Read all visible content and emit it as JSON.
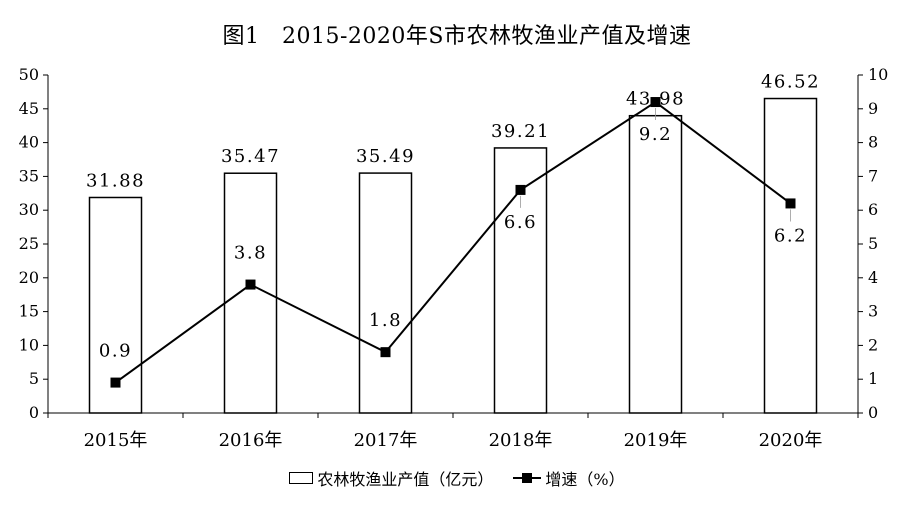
{
  "chart_data": {
    "type": "bar+line",
    "title": "图1　2015-2020年S市农林牧渔业产值及增速",
    "categories": [
      "2015年",
      "2016年",
      "2017年",
      "2018年",
      "2019年",
      "2020年"
    ],
    "series": [
      {
        "name": "农林牧渔业产值（亿元）",
        "type": "bar",
        "axis": "left",
        "values": [
          31.88,
          35.47,
          35.49,
          39.21,
          43.98,
          46.52
        ],
        "labels": [
          "31.88",
          "35.47",
          "35.49",
          "39.21",
          "43.98",
          "46.52"
        ]
      },
      {
        "name": "增速（%）",
        "type": "line",
        "axis": "right",
        "values": [
          0.9,
          3.8,
          1.8,
          6.6,
          9.2,
          6.2
        ],
        "labels": [
          "0.9",
          "3.8",
          "1.8",
          "6.6",
          "9.2",
          "6.2"
        ]
      }
    ],
    "y_left": {
      "min": 0,
      "max": 50,
      "ticks": [
        "0",
        "5",
        "10",
        "15",
        "20",
        "25",
        "30",
        "35",
        "40",
        "45",
        "50"
      ]
    },
    "y_right": {
      "min": 0,
      "max": 10,
      "ticks": [
        "0",
        "1",
        "2",
        "3",
        "4",
        "5",
        "6",
        "7",
        "8",
        "9",
        "10"
      ]
    },
    "grid": false,
    "legend_position": "bottom",
    "colors": {
      "bar_fill": "#ffffff",
      "bar_stroke": "#000000",
      "line": "#000000",
      "marker": "#000000"
    }
  }
}
